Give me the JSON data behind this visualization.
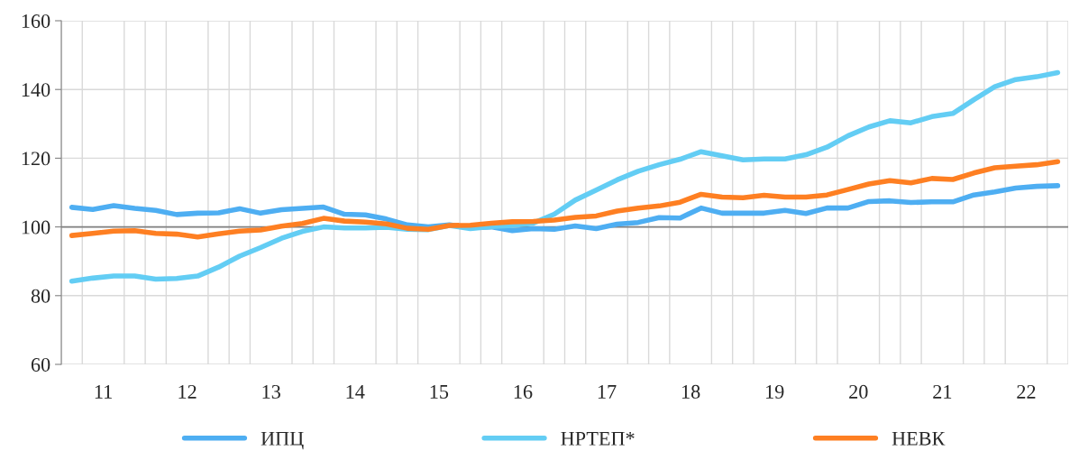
{
  "chart_data": {
    "type": "line",
    "x": [
      11.125,
      11.375,
      11.625,
      11.875,
      12.125,
      12.375,
      12.625,
      12.875,
      13.125,
      13.375,
      13.625,
      13.875,
      14.125,
      14.375,
      14.625,
      14.875,
      15.125,
      15.375,
      15.625,
      15.875,
      16.125,
      16.375,
      16.625,
      16.875,
      17.125,
      17.375,
      17.625,
      17.875,
      18.125,
      18.375,
      18.625,
      18.875,
      19.125,
      19.375,
      19.625,
      19.875,
      20.125,
      20.375,
      20.625,
      20.875,
      21.125,
      21.375,
      21.625,
      21.875,
      22.125,
      22.375,
      22.625,
      22.875
    ],
    "series": [
      {
        "name": "ИПЦ",
        "color": "#4eaef2",
        "values": [
          105.7,
          105.1,
          106.2,
          105.4,
          104.8,
          103.6,
          104.0,
          104.1,
          105.3,
          104.0,
          105.0,
          105.4,
          105.8,
          103.7,
          103.5,
          102.3,
          100.6,
          100.0,
          100.6,
          99.8,
          100.0,
          98.9,
          99.5,
          99.3,
          100.3,
          99.5,
          100.8,
          101.3,
          102.7,
          102.6,
          105.5,
          104.0,
          104.0,
          104.0,
          104.8,
          103.9,
          105.5,
          105.5,
          107.4,
          107.6,
          107.1,
          107.3,
          107.3,
          109.3,
          110.2,
          111.3,
          111.8,
          112.0
        ]
      },
      {
        "name": "НРТЕП*",
        "color": "#63cdf4",
        "values": [
          84.2,
          85.1,
          85.7,
          85.7,
          84.8,
          85.0,
          85.7,
          88.3,
          91.5,
          94.0,
          96.7,
          98.7,
          100.0,
          99.7,
          99.7,
          99.9,
          99.3,
          99.2,
          100.4,
          99.5,
          100.1,
          100.4,
          101.1,
          103.7,
          107.8,
          110.7,
          113.7,
          116.2,
          118.1,
          119.7,
          121.9,
          120.7,
          119.5,
          119.8,
          119.8,
          121.0,
          123.2,
          126.5,
          129.1,
          130.9,
          130.3,
          132.1,
          133.0,
          137.0,
          140.8,
          142.9,
          143.7,
          144.9
        ]
      },
      {
        "name": "НЕВК",
        "color": "#fe7f22",
        "values": [
          97.5,
          98.1,
          98.8,
          98.9,
          98.1,
          97.9,
          97.1,
          98.0,
          98.8,
          99.1,
          100.2,
          101.0,
          102.5,
          101.7,
          101.4,
          100.9,
          99.6,
          99.3,
          100.4,
          100.5,
          101.1,
          101.5,
          101.6,
          102.0,
          102.8,
          103.2,
          104.6,
          105.5,
          106.1,
          107.2,
          109.5,
          108.7,
          108.5,
          109.2,
          108.7,
          108.7,
          109.3,
          110.9,
          112.5,
          113.5,
          112.8,
          114.1,
          113.8,
          115.7,
          117.2,
          117.7,
          118.1,
          119.0
        ]
      }
    ],
    "xlim": [
      11,
      23
    ],
    "xticks": [
      {
        "value": 11.5,
        "label": "11"
      },
      {
        "value": 12.5,
        "label": "12"
      },
      {
        "value": 13.5,
        "label": "13"
      },
      {
        "value": 14.5,
        "label": "14"
      },
      {
        "value": 15.5,
        "label": "15"
      },
      {
        "value": 16.5,
        "label": "16"
      },
      {
        "value": 17.5,
        "label": "17"
      },
      {
        "value": 18.5,
        "label": "18"
      },
      {
        "value": 19.5,
        "label": "19"
      },
      {
        "value": 20.5,
        "label": "20"
      },
      {
        "value": 21.5,
        "label": "21"
      },
      {
        "value": 22.5,
        "label": "22"
      }
    ],
    "ylim": [
      60,
      160
    ],
    "yticks": [
      60,
      80,
      100,
      120,
      140,
      160
    ],
    "ref_lines": [
      {
        "axis": "y",
        "value": 100,
        "color": "#808080"
      }
    ],
    "grid": true,
    "legend": "bottom",
    "marker": "none",
    "line_style": "solid"
  }
}
